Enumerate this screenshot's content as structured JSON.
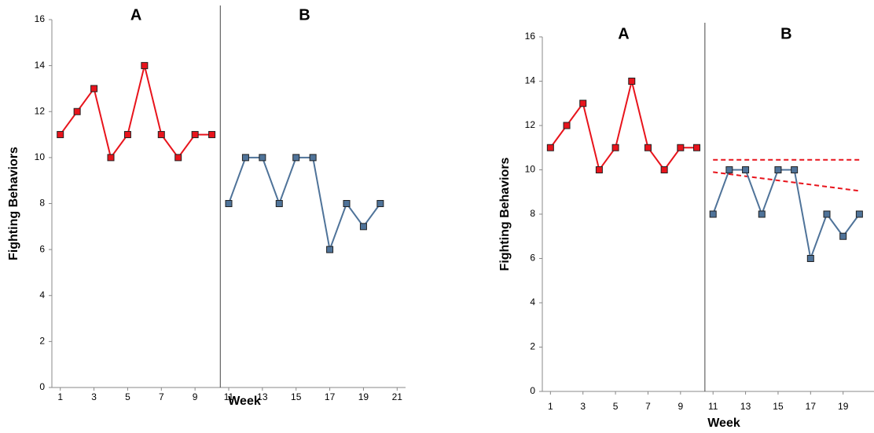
{
  "chart_data": [
    {
      "type": "line",
      "ylabel": "Fighting Behaviors",
      "xlabel": "Week",
      "xlim": [
        0.5,
        21.5
      ],
      "ylim": [
        0,
        16
      ],
      "xticks": [
        1,
        3,
        5,
        7,
        9,
        11,
        13,
        15,
        17,
        19,
        21
      ],
      "yticks": [
        0,
        2,
        4,
        6,
        8,
        10,
        12,
        14,
        16
      ],
      "phase_change": 10.5,
      "series": [
        {
          "name": "A",
          "color": "#e8141c",
          "x": [
            1,
            2,
            3,
            4,
            5,
            6,
            7,
            8,
            9,
            10
          ],
          "values": [
            11,
            12,
            13,
            10,
            11,
            14,
            11,
            10,
            11,
            11
          ]
        },
        {
          "name": "B",
          "color": "#4f7399",
          "x": [
            11,
            12,
            13,
            14,
            15,
            16,
            17,
            18,
            19,
            20
          ],
          "values": [
            8,
            10,
            10,
            8,
            10,
            10,
            6,
            8,
            7,
            8
          ]
        }
      ]
    },
    {
      "type": "line",
      "ylabel": "Fighting Behaviors",
      "xlabel": "Week",
      "xlim": [
        0.5,
        20.9
      ],
      "ylim": [
        0,
        16
      ],
      "xticks": [
        1,
        3,
        5,
        7,
        9,
        11,
        13,
        15,
        17,
        19
      ],
      "yticks": [
        0,
        2,
        4,
        6,
        8,
        10,
        12,
        14,
        16
      ],
      "phase_change": 10.5,
      "series": [
        {
          "name": "A",
          "color": "#e8141c",
          "x": [
            1,
            2,
            3,
            4,
            5,
            6,
            7,
            8,
            9,
            10
          ],
          "values": [
            11,
            12,
            13,
            10,
            11,
            14,
            11,
            10,
            11,
            11
          ]
        },
        {
          "name": "B",
          "color": "#4f7399",
          "x": [
            11,
            12,
            13,
            14,
            15,
            16,
            17,
            18,
            19,
            20
          ],
          "values": [
            8,
            10,
            10,
            8,
            10,
            10,
            6,
            8,
            7,
            8
          ]
        }
      ],
      "trend_lines": [
        {
          "color": "#e8141c",
          "x": [
            11,
            20
          ],
          "values": [
            10.45,
            10.45
          ]
        },
        {
          "color": "#e8141c",
          "x": [
            11,
            20
          ],
          "values": [
            9.9,
            9.05
          ]
        }
      ]
    }
  ]
}
